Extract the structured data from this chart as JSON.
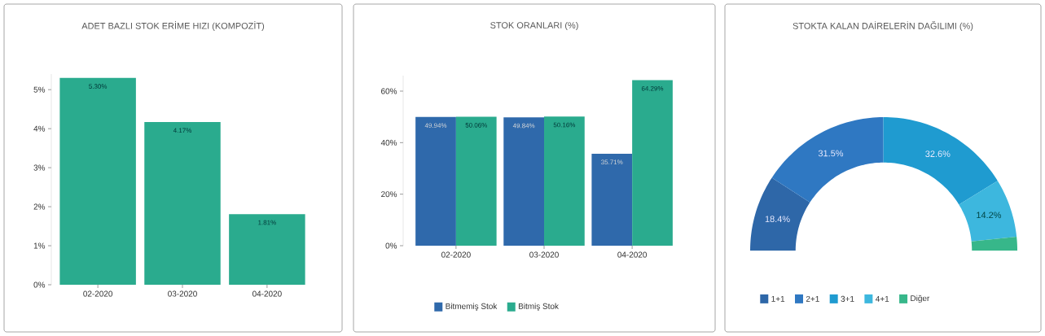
{
  "chart_data": [
    {
      "type": "bar",
      "title": "ADET BAZLI STOK ERİME HIZI (KOMPOZİT)",
      "categories": [
        "02-2020",
        "03-2020",
        "04-2020"
      ],
      "values": [
        5.3,
        4.17,
        1.81
      ],
      "color": "#2aab8e",
      "value_labels": [
        "5.30%",
        "4.17%",
        "1.81%"
      ],
      "ylim": [
        0,
        5.4
      ],
      "yticks": [
        {
          "value": 0,
          "label": "0%"
        },
        {
          "value": 1,
          "label": "1%"
        },
        {
          "value": 2,
          "label": "2%"
        },
        {
          "value": 3,
          "label": "3%"
        },
        {
          "value": 4,
          "label": "4%"
        },
        {
          "value": 5,
          "label": "5%"
        }
      ],
      "grid": false
    },
    {
      "type": "bar",
      "title": "STOK ORANLARI (%)",
      "categories": [
        "02-2020",
        "03-2020",
        "04-2020"
      ],
      "series": [
        {
          "name": "Bitmemiş Stok",
          "color": "#2f69ab",
          "values": [
            49.94,
            49.84,
            35.71
          ],
          "value_labels": [
            "49.94%",
            "49.84%",
            "35.71%"
          ]
        },
        {
          "name": "Bitmiş Stok",
          "color": "#2aab8e",
          "values": [
            50.06,
            50.16,
            64.29
          ],
          "value_labels": [
            "50.06%",
            "50.16%",
            "64.29%"
          ]
        }
      ],
      "ylim": [
        0,
        66
      ],
      "yticks": [
        {
          "value": 0,
          "label": "0%"
        },
        {
          "value": 20,
          "label": "20%"
        },
        {
          "value": 40,
          "label": "40%"
        },
        {
          "value": 60,
          "label": "60%"
        }
      ],
      "grid": false,
      "legend": "bottom"
    },
    {
      "type": "donut",
      "title": "STOKTA KALAN DAİRELERİN DAĞILIMI (%)",
      "categories": [
        "1+1",
        "2+1",
        "3+1",
        "4+1",
        "Diğer"
      ],
      "values": [
        18.4,
        31.5,
        32.6,
        14.2,
        3.3
      ],
      "colors": [
        "#2e67a8",
        "#2f78c2",
        "#1f9bd0",
        "#3db7de",
        "#37b78a"
      ],
      "value_labels": [
        "18.4%",
        "31.5%",
        "32.6%",
        "14.2%",
        null
      ],
      "legend": "bottom"
    }
  ]
}
